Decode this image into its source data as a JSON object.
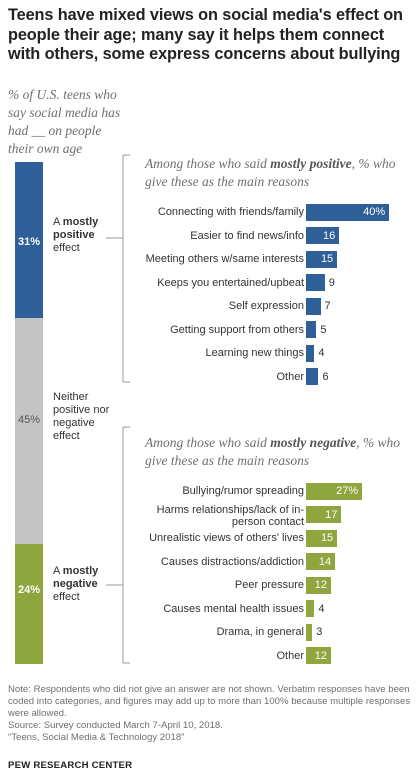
{
  "title": "Teens have mixed views on social media's effect on people their age; many say it helps them connect with others, some express concerns about bullying",
  "subtitle": "% of U.S. teens who say social media has had __ on people their own age",
  "colors": {
    "positive": "#2f5f98",
    "neutral": "#c4c4c4",
    "negative": "#8ea63d"
  },
  "segments": {
    "positive": {
      "value": "31%",
      "label_pre": "A ",
      "label_bold": "mostly positive",
      "label_post": " effect"
    },
    "neutral": {
      "value": "45%",
      "label": "Neither positive nor negative effect"
    },
    "negative": {
      "value": "24%",
      "label_pre": "A ",
      "label_bold": "mostly negative",
      "label_post": " effect"
    }
  },
  "positive_panel": {
    "head_pre": "Among those who said ",
    "head_bold": "mostly positive",
    "head_post": ", % who give these as the main reasons"
  },
  "negative_panel": {
    "head_pre": "Among those who said ",
    "head_bold": "mostly negative",
    "head_post": ", % who give these as the main reasons"
  },
  "chart_data": [
    {
      "type": "bar",
      "title": "Teens have mixed views on social media's effect on people their age; many say it helps them connect with others, some express concerns about bullying",
      "subtitle": "% of U.S. teens who say social media has had __ on people their own age",
      "categories": [
        "A mostly positive effect",
        "Neither positive nor negative effect",
        "A mostly negative effect"
      ],
      "values": [
        31,
        45,
        24
      ],
      "stacked": true
    },
    {
      "type": "bar",
      "title": "Among those who said mostly positive, % who give these as the main reasons",
      "categories": [
        "Connecting with friends/family",
        "Easier to find news/info",
        "Meeting others w/same interests",
        "Keeps you entertained/upbeat",
        "Self expression",
        "Getting support from others",
        "Learning new things",
        "Other"
      ],
      "values": [
        40,
        16,
        15,
        9,
        7,
        5,
        4,
        6
      ],
      "value_labels": [
        "40%",
        "16",
        "15",
        "9",
        "7",
        "5",
        "4",
        "6"
      ]
    },
    {
      "type": "bar",
      "title": "Among those who said mostly negative, % who give these as the main reasons",
      "categories": [
        "Bullying/rumor spreading",
        "Harms relationships/lack of in-person contact",
        "Unrealistic views of others' lives",
        "Causes distractions/addiction",
        "Peer pressure",
        "Causes mental health issues",
        "Drama, in general",
        "Other"
      ],
      "values": [
        27,
        17,
        15,
        14,
        12,
        4,
        3,
        12
      ],
      "value_labels": [
        "27%",
        "17",
        "15",
        "14",
        "12",
        "4",
        "3",
        "12"
      ]
    }
  ],
  "notes": [
    "Note: Respondents who did not give an answer are not shown. Verbatim responses have been coded into categories, and figures may add up to more than 100% because multiple responses were allowed.",
    "Source: Survey conducted March 7-April 10, 2018.",
    "“Teens, Social Media & Technology 2018”"
  ],
  "footer": "PEW RESEARCH CENTER"
}
